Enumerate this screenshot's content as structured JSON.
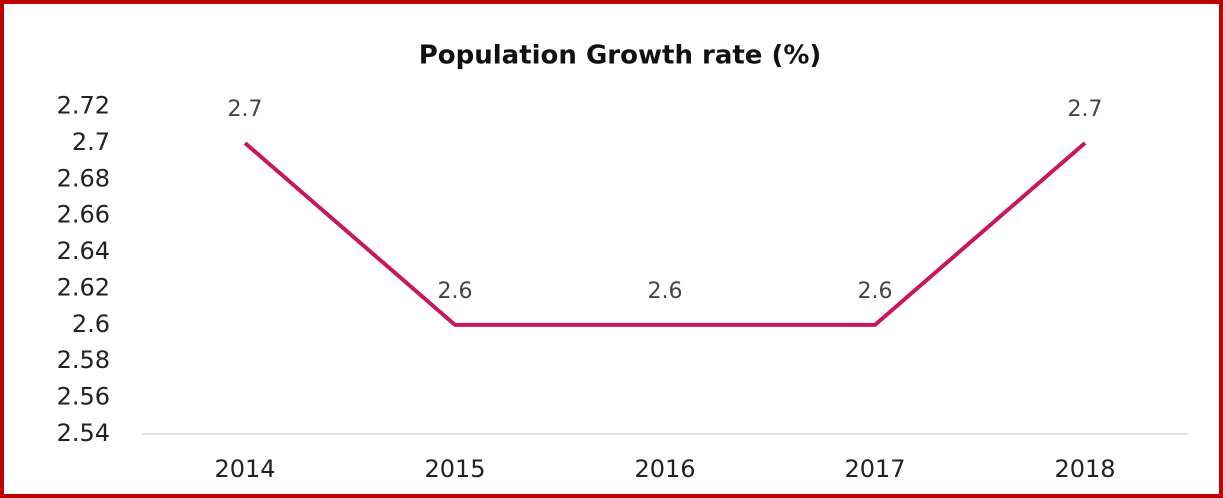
{
  "chart_data": {
    "type": "line",
    "title": "Population Growth rate (%)",
    "categories": [
      "2014",
      "2015",
      "2016",
      "2017",
      "2018"
    ],
    "series": [
      {
        "name": "Population Growth rate (%)",
        "color": "#c8175d",
        "values": [
          2.7,
          2.6,
          2.6,
          2.6,
          2.7
        ]
      }
    ],
    "ylim": [
      2.54,
      2.72
    ],
    "yticks": [
      2.54,
      2.56,
      2.58,
      2.6,
      2.62,
      2.64,
      2.66,
      2.68,
      2.7,
      2.72
    ],
    "grid": false,
    "data_labels": true
  }
}
